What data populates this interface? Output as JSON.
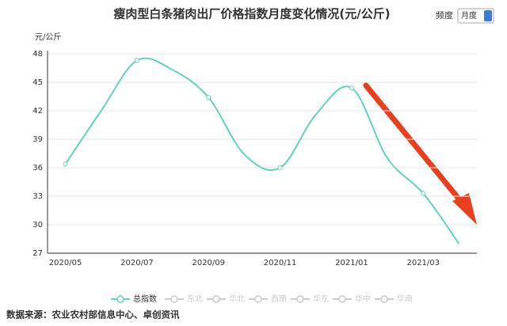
{
  "chart_data": {
    "type": "line",
    "title": "瘦肉型白条猪肉出厂价格指数月度变化情况(元/公斤)",
    "frequency_label": "频度",
    "frequency_value": "月度",
    "y_axis_label": "元/公斤",
    "categories": [
      "2020/05",
      null,
      "2020/07",
      null,
      "2020/09",
      null,
      "2020/11",
      null,
      "2021/01",
      null,
      "2021/03",
      null
    ],
    "series": [
      {
        "name": "总指数",
        "color": "#5fd3bf",
        "values": [
          36.4,
          42,
          47.3,
          46.3,
          43.4,
          37.4,
          36.0,
          41.6,
          44.4,
          37,
          33.3,
          28
        ]
      }
    ],
    "hidden_series": [
      "东北",
      "华北",
      "西南",
      "华东",
      "华中",
      "华南"
    ],
    "ylim": [
      27,
      48
    ],
    "yticks": [
      27,
      30,
      33,
      36,
      39,
      42,
      45,
      48
    ],
    "grid": true,
    "source": "数据来源：农业农村部信息中心、卓创资讯"
  }
}
